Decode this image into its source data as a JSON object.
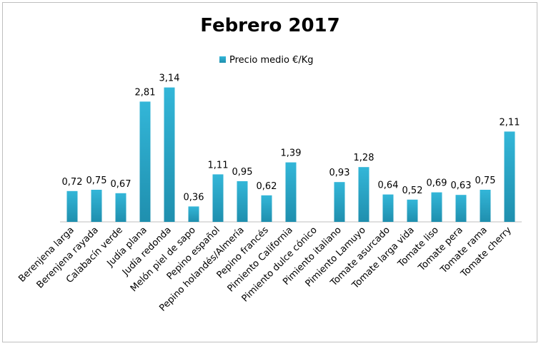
{
  "chart_data": {
    "type": "bar",
    "title": "Febrero 2017",
    "xlabel": "",
    "ylabel": "",
    "legend_position": "top",
    "grid": false,
    "ylim": [
      0,
      3.4
    ],
    "categories": [
      "Berenjena larga",
      "Berenjena rayada",
      "Calabacín verde",
      "Judía plana",
      "Judía redonda",
      "Melón piel de sapo",
      "Pepino español",
      "Pepino holandés/Almería",
      "Pepino francés",
      "Pimiento California",
      "Pimiento dulce cónico",
      "Pimiento italiano",
      "Pimiento Lamuyo",
      "Tomate asurcado",
      "Tomate larga vida",
      "Tomate liso",
      "Tomate pera",
      "Tomate rama",
      "Tomate cherry"
    ],
    "series": [
      {
        "name": "Precio medio €/Kg",
        "color": "#31b2d4",
        "values": [
          0.72,
          0.75,
          0.67,
          2.81,
          3.14,
          0.36,
          1.11,
          0.95,
          0.62,
          1.39,
          null,
          0.93,
          1.28,
          0.64,
          0.52,
          0.69,
          0.63,
          0.75,
          2.11
        ],
        "labels": [
          "0,72",
          "0,75",
          "0,67",
          "2,81",
          "3,14",
          "0,36",
          "1,11",
          "0,95",
          "0,62",
          "1,39",
          "",
          "0,93",
          "1,28",
          "0,64",
          "0,52",
          "0,69",
          "0,63",
          "0,75",
          "2,11"
        ]
      }
    ]
  }
}
